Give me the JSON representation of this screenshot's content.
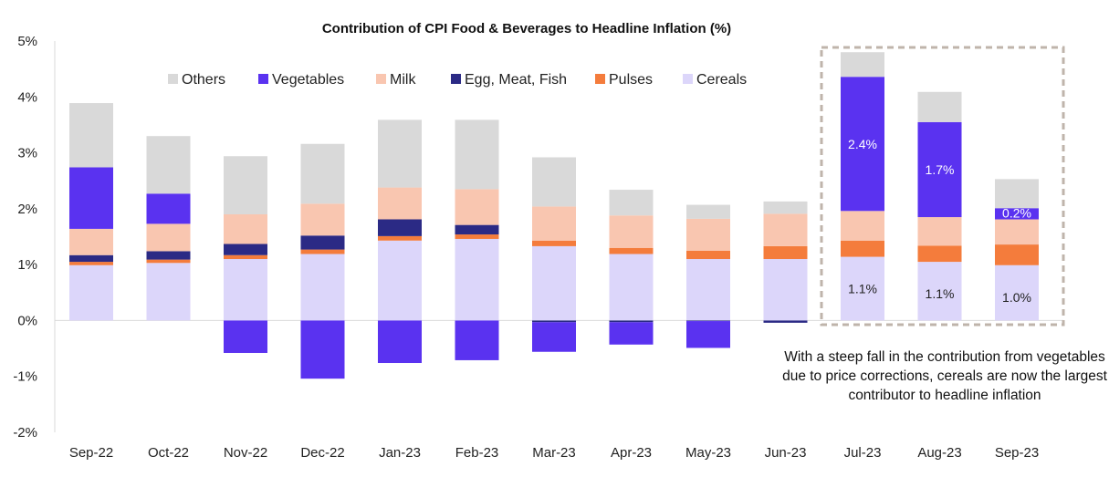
{
  "chart_data": {
    "type": "bar",
    "stacked": true,
    "title": "Contribution of CPI Food & Beverages to Headline Inflation (%)",
    "xlabel": "",
    "ylabel": "",
    "ylim": [
      -0.02,
      0.05
    ],
    "y_ticks": [
      {
        "value": 0.05,
        "label": "5%"
      },
      {
        "value": 0.04,
        "label": "4%"
      },
      {
        "value": 0.03,
        "label": "3%"
      },
      {
        "value": 0.02,
        "label": "2%"
      },
      {
        "value": 0.01,
        "label": "1%"
      },
      {
        "value": 0.0,
        "label": "0%"
      },
      {
        "value": -0.01,
        "label": "-1%"
      },
      {
        "value": -0.02,
        "label": "-2%"
      }
    ],
    "categories": [
      "Sep-22",
      "Oct-22",
      "Nov-22",
      "Dec-22",
      "Jan-23",
      "Feb-23",
      "Mar-23",
      "Apr-23",
      "May-23",
      "Jun-23",
      "Jul-23",
      "Aug-23",
      "Sep-23"
    ],
    "legend_position": "top",
    "series": [
      {
        "name": "Cereals",
        "color": "#dcd6fa",
        "values": [
          0.0099,
          0.0103,
          0.011,
          0.0119,
          0.0143,
          0.0146,
          0.0133,
          0.0119,
          0.011,
          0.011,
          0.0114,
          0.0105,
          0.0099
        ]
      },
      {
        "name": "Pulses",
        "color": "#f47c3c",
        "values": [
          0.0006,
          0.0006,
          0.0007,
          0.0008,
          0.0008,
          0.0008,
          0.001,
          0.0011,
          0.0015,
          0.0023,
          0.0029,
          0.0029,
          0.0037
        ]
      },
      {
        "name": "Egg, Meat, Fish",
        "color": "#2b2a85",
        "values": [
          0.0012,
          0.0015,
          0.002,
          0.0025,
          0.003,
          0.0017,
          -0.0003,
          -0.0003,
          -0.0001,
          -0.0004,
          0.0,
          0.0,
          0.0
        ]
      },
      {
        "name": "Milk",
        "color": "#f9c6b0",
        "values": [
          0.0047,
          0.0049,
          0.0053,
          0.0057,
          0.0057,
          0.0064,
          0.0061,
          0.0058,
          0.0057,
          0.0058,
          0.0053,
          0.0051,
          0.0045
        ]
      },
      {
        "name": "Vegetables",
        "color": "#5a32f0",
        "values": [
          0.011,
          0.0054,
          -0.0058,
          -0.0104,
          -0.0076,
          -0.0071,
          -0.0053,
          -0.004,
          -0.0048,
          0.0,
          0.024,
          0.017,
          0.002
        ]
      },
      {
        "name": "Others",
        "color": "#d9d9d9",
        "values": [
          0.0115,
          0.0103,
          0.0104,
          0.0107,
          0.0121,
          0.0124,
          0.0088,
          0.0046,
          0.0025,
          0.0022,
          0.0044,
          0.0054,
          0.0052
        ]
      }
    ],
    "legend_order": [
      "Others",
      "Vegetables",
      "Milk",
      "Egg, Meat, Fish",
      "Pulses",
      "Cereals"
    ],
    "data_labels": [
      {
        "category": "Jul-23",
        "series": "Vegetables",
        "text": "2.4%"
      },
      {
        "category": "Aug-23",
        "series": "Vegetables",
        "text": "1.7%"
      },
      {
        "category": "Sep-23",
        "series": "Vegetables",
        "text": "0.2%"
      },
      {
        "category": "Jul-23",
        "series": "Cereals",
        "text": "1.1%"
      },
      {
        "category": "Aug-23",
        "series": "Cereals",
        "text": "1.1%"
      },
      {
        "category": "Sep-23",
        "series": "Cereals",
        "text": "1.0%"
      }
    ],
    "highlight": {
      "from": "Jul-23",
      "to": "Sep-23",
      "style": "dashed box",
      "color": "#bfb4ab"
    },
    "annotation": "With a steep fall in the contribution from vegetables due to price corrections, cereals are now the largest contributor to headline inflation"
  }
}
